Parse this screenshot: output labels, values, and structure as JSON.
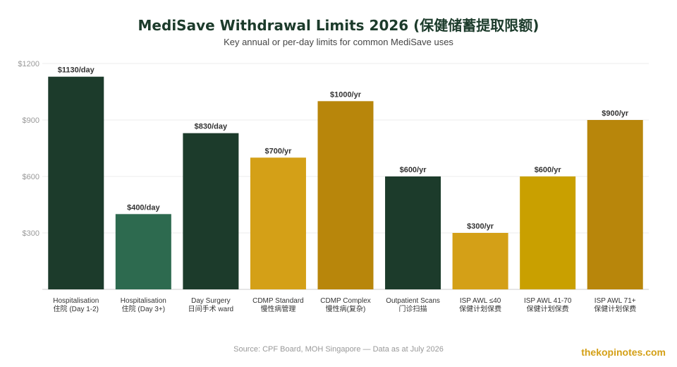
{
  "title": "MediSave Withdrawal Limits 2026 (保健储蓄提取限额)",
  "subtitle": "Key annual or per-day limits for common MediSave uses",
  "source": "Source: CPF Board, MOH Singapore — Data as at July 2026",
  "watermark": "thekopinotes.com",
  "chart_data": {
    "type": "bar",
    "title": "MediSave Withdrawal Limits 2026 (保健储蓄提取限额)",
    "subtitle": "Key annual or per-day limits for common MediSave uses",
    "xlabel": "",
    "ylabel": "",
    "ylim": [
      0,
      1200
    ],
    "yticks": [
      300,
      600,
      900,
      1200
    ],
    "ytick_labels": [
      "$300",
      "$600",
      "$900",
      "$1200"
    ],
    "grid": true,
    "bars": [
      {
        "label_en": "Hospitalisation",
        "label_zh": "住院 (Day 1-2)",
        "value": 1130,
        "value_label": "$1130/day",
        "color": "#1c3b2b"
      },
      {
        "label_en": "Hospitalisation",
        "label_zh": "住院 (Day 3+)",
        "value": 400,
        "value_label": "$400/day",
        "color": "#2d6a4f"
      },
      {
        "label_en": "Day Surgery",
        "label_zh": "日间手术 ward",
        "value": 830,
        "value_label": "$830/day",
        "color": "#1c3b2b"
      },
      {
        "label_en": "CDMP Standard",
        "label_zh": "慢性病管理",
        "value": 700,
        "value_label": "$700/yr",
        "color": "#d4a017"
      },
      {
        "label_en": "CDMP Complex",
        "label_zh": "慢性病(复杂)",
        "value": 1000,
        "value_label": "$1000/yr",
        "color": "#b8860b"
      },
      {
        "label_en": "Outpatient Scans",
        "label_zh": "门诊扫描",
        "value": 600,
        "value_label": "$600/yr",
        "color": "#1c3b2b"
      },
      {
        "label_en": "ISP AWL ≤40",
        "label_zh": "保健计划保费",
        "value": 300,
        "value_label": "$300/yr",
        "color": "#d4a017"
      },
      {
        "label_en": "ISP AWL 41-70",
        "label_zh": "保健计划保费",
        "value": 600,
        "value_label": "$600/yr",
        "color": "#c9a000"
      },
      {
        "label_en": "ISP AWL 71+",
        "label_zh": "保健计划保费",
        "value": 900,
        "value_label": "$900/yr",
        "color": "#b8860b"
      }
    ]
  }
}
